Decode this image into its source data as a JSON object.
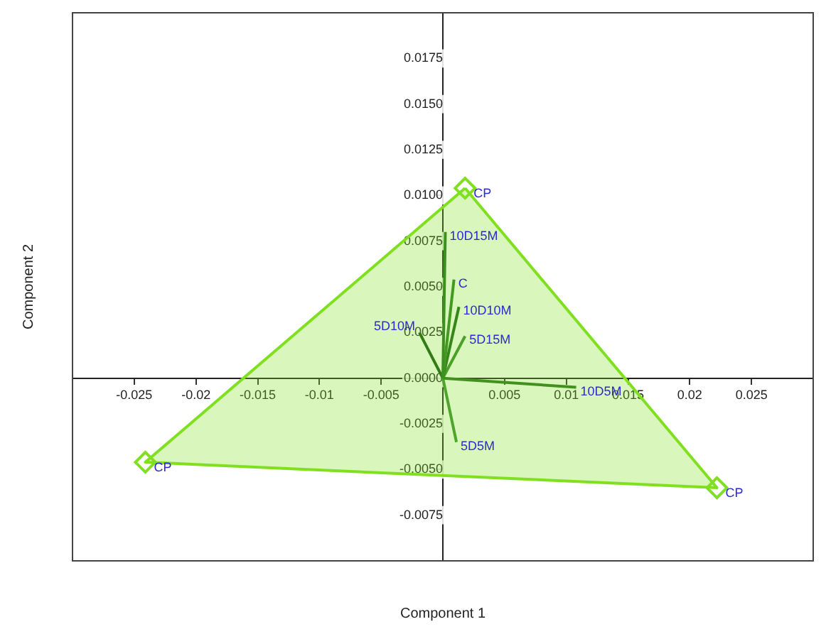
{
  "chart_data": {
    "type": "scatter",
    "xlabel": "Component 1",
    "ylabel": "Component 2",
    "xlim": [
      -0.03,
      0.03
    ],
    "ylim": [
      -0.01,
      0.02
    ],
    "xticks": [
      -0.025,
      -0.02,
      -0.015,
      -0.01,
      -0.005,
      0.005,
      0.01,
      0.015,
      0.02,
      0.025
    ],
    "yticks": [
      {
        "value": -0.0075,
        "label": "-0.0075"
      },
      {
        "value": -0.005,
        "label": "-0.0050"
      },
      {
        "value": -0.0025,
        "label": "-0.0025"
      },
      {
        "value": 0,
        "label": "0.0000"
      },
      {
        "value": 0.0025,
        "label": "0.0025"
      },
      {
        "value": 0.005,
        "label": "0.0050"
      },
      {
        "value": 0.0075,
        "label": "0.0075"
      },
      {
        "value": 0.01,
        "label": "0.0100"
      },
      {
        "value": 0.0125,
        "label": "0.0125"
      },
      {
        "value": 0.015,
        "label": "0.0150"
      },
      {
        "value": 0.0175,
        "label": "0.0175"
      }
    ],
    "grid": false,
    "legend": false,
    "series": [
      {
        "type": "area",
        "color": "#80e020",
        "x": [
          0.0018,
          -0.0241,
          0.0222,
          0.0018
        ],
        "values": [
          0.0104,
          -0.0046,
          -0.006,
          0.0104
        ]
      },
      {
        "name": "CP",
        "color": "#80e020",
        "marker": "diamond",
        "x": [
          0.0018,
          -0.0241,
          0.0222
        ],
        "values": [
          0.0104,
          -0.0046,
          -0.006
        ]
      },
      {
        "type": "line",
        "name": "10D15M",
        "color": "#1e6e1e",
        "x": [
          0,
          0.0002
        ],
        "values": [
          0,
          0.008
        ]
      },
      {
        "type": "line",
        "name": "C",
        "color": "#2a7a22",
        "x": [
          0,
          0.0009
        ],
        "values": [
          0,
          0.0054
        ]
      },
      {
        "type": "line",
        "name": "10D10M",
        "color": "#175f18",
        "x": [
          0,
          0.0013
        ],
        "values": [
          0,
          0.0039
        ]
      },
      {
        "type": "line",
        "name": "5D15M",
        "color": "#33852b",
        "x": [
          0,
          0.0018
        ],
        "values": [
          0,
          0.0023
        ]
      },
      {
        "type": "line",
        "name": "5D10M",
        "color": "#124f12",
        "x": [
          0,
          -0.0019
        ],
        "values": [
          0,
          0.0025
        ]
      },
      {
        "type": "line",
        "name": "10D5M",
        "color": "#266f1c",
        "x": [
          0,
          0.0108
        ],
        "values": [
          0,
          -0.0005
        ]
      },
      {
        "type": "line",
        "name": "5D5M",
        "color": "#3a8c30",
        "x": [
          0,
          0.0011
        ],
        "values": [
          0,
          -0.0035
        ]
      }
    ]
  }
}
